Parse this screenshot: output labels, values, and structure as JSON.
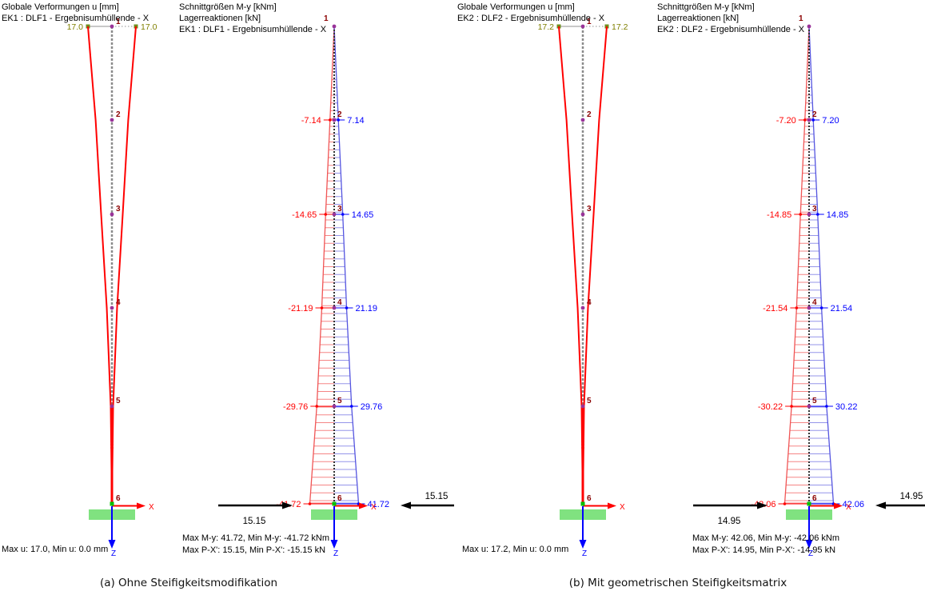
{
  "colors": {
    "deformed_shape": "#ff0000",
    "value_min": "#ff0000",
    "value_max": "#0000ff",
    "hatch_min": "#f58585",
    "hatch_max": "#9595ea",
    "outline_min": "#f05555",
    "outline_max": "#5555e0",
    "node_label": "#8b0000",
    "node_dot": "#993399",
    "top_value": "#7f7f00",
    "marker_green": "#6f8f1f",
    "support": "#80e280",
    "support_node": "#00c000",
    "axis_x": "#ff0000",
    "axis_z": "#0000ff",
    "reaction_arrow": "#000000",
    "member_deform": "#8a8a8a",
    "member_moment": "#333333",
    "leader_gray": "#a8a8a8"
  },
  "node_numbers": [
    "1",
    "2",
    "3",
    "4",
    "5",
    "6"
  ],
  "axis_labels": {
    "x": "X",
    "z": "Z"
  },
  "panels": [
    {
      "kind": "deformation",
      "header": [
        "Globale Verformungen u [mm]",
        "EK1 : DLF1 - Ergebnisumhüllende - X"
      ],
      "max_deformation_label": "17.0",
      "footer": [
        "Max u: 17.0, Min u: 0.0 mm"
      ]
    },
    {
      "kind": "moment",
      "header": [
        "Schnittgrößen M-y [kNm]",
        "Lagerreaktionen [kN]",
        "EK1 : DLF1 - Ergebnisumhüllende - X"
      ],
      "moments": [
        7.14,
        14.65,
        21.19,
        29.76,
        41.72
      ],
      "reaction": "15.15",
      "footer": [
        "Max M-y: 41.72, Min M-y: -41.72 kNm",
        "Max P-X': 15.15, Min P-X': -15.15 kN"
      ]
    },
    {
      "kind": "deformation",
      "header": [
        "Globale Verformungen u [mm]",
        "EK2 : DLF2 - Ergebnisumhüllende - X"
      ],
      "max_deformation_label": "17.2",
      "footer": [
        "Max u: 17.2, Min u: 0.0 mm"
      ]
    },
    {
      "kind": "moment",
      "header": [
        "Schnittgrößen M-y [kNm]",
        "Lagerreaktionen [kN]",
        "EK2 : DLF2 - Ergebnisumhüllende - X"
      ],
      "moments": [
        7.2,
        14.85,
        21.54,
        30.22,
        42.06
      ],
      "reaction": "14.95",
      "footer": [
        "Max M-y: 42.06, Min M-y: -42.06 kNm",
        "Max P-X': 14.95, Min P-X': -14.95 kN"
      ]
    }
  ],
  "captions": [
    {
      "text": "(a) Ohne Steifigkeitsmodifikation"
    },
    {
      "text": "(b) Mit geometrischen Steifigkeitsmatrix"
    }
  ]
}
